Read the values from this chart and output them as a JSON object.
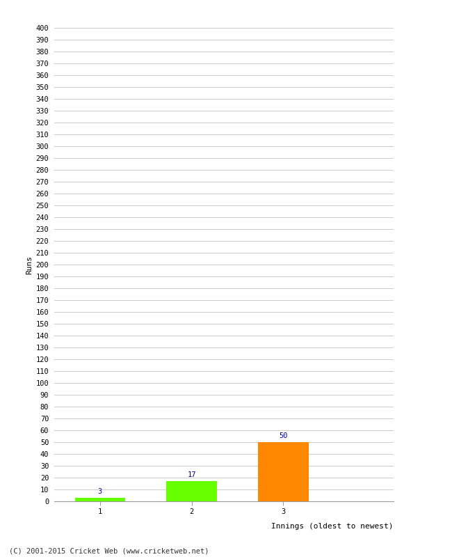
{
  "categories": [
    "1",
    "2",
    "3"
  ],
  "values": [
    3,
    17,
    50
  ],
  "bar_colors": [
    "#66ff00",
    "#66ff00",
    "#ff8800"
  ],
  "xlabel": "Innings (oldest to newest)",
  "ylabel": "Runs",
  "ylim": [
    0,
    400
  ],
  "ytick_step": 10,
  "background_color": "#ffffff",
  "grid_color": "#cccccc",
  "annotation_color": "#0000aa",
  "annotation_fontsize": 7.5,
  "xlabel_fontsize": 8,
  "ylabel_fontsize": 8,
  "tick_fontsize": 7.5,
  "footer": "(C) 2001-2015 Cricket Web (www.cricketweb.net)",
  "footer_fontsize": 7.5
}
